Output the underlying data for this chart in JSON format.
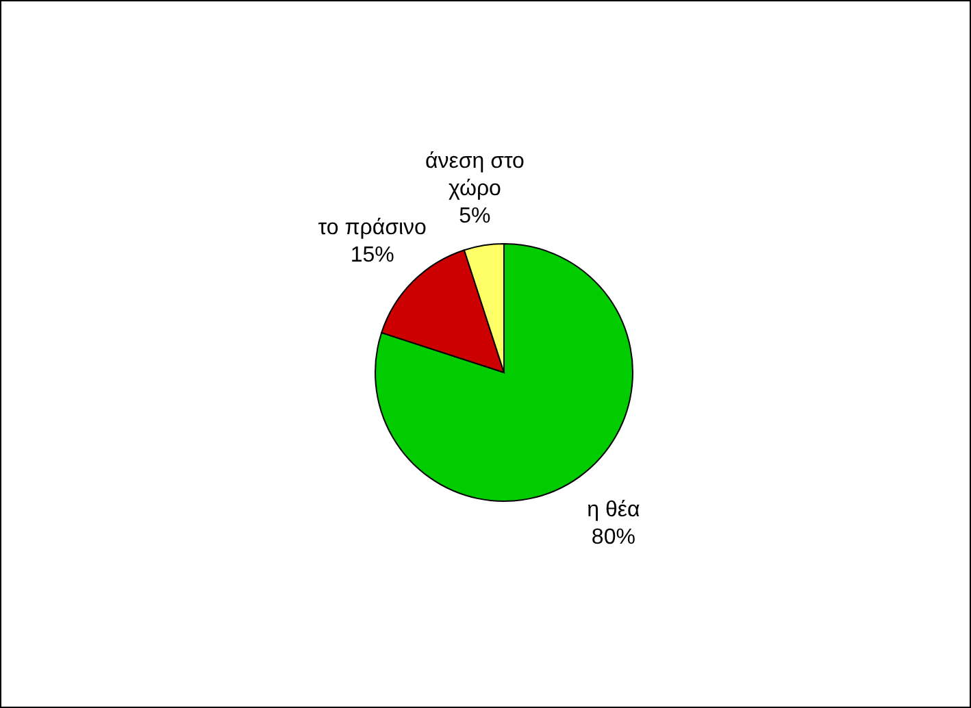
{
  "chart_data": {
    "type": "pie",
    "categories": [
      "η θέα",
      "το πράσινο",
      "άνεση στο χώρο"
    ],
    "values": [
      80,
      15,
      5
    ],
    "colors": [
      "#00cc00",
      "#cc0000",
      "#ffff66"
    ],
    "value_labels": [
      "80%",
      "15%",
      "5%"
    ],
    "legend": false
  }
}
